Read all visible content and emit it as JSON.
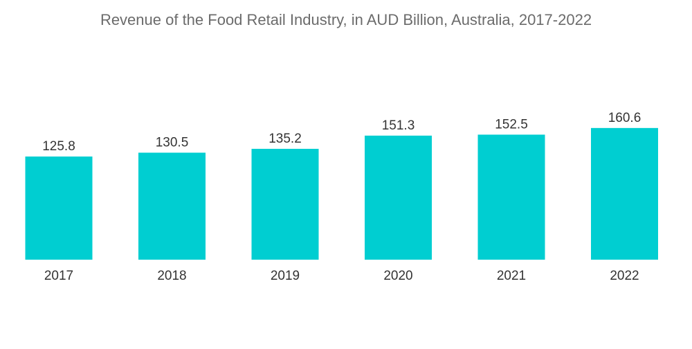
{
  "chart_data": {
    "type": "bar",
    "title": "Revenue of the Food Retail Industry, in AUD Billion, Australia, 2017-2022",
    "xlabel": "",
    "ylabel": "",
    "categories": [
      "2017",
      "2018",
      "2019",
      "2020",
      "2021",
      "2022"
    ],
    "values": [
      125.8,
      130.5,
      135.2,
      151.3,
      152.5,
      160.6
    ],
    "ylim": [
      0,
      160.6
    ],
    "bar_color": "#00CED1",
    "grid": false,
    "legend": "none"
  }
}
